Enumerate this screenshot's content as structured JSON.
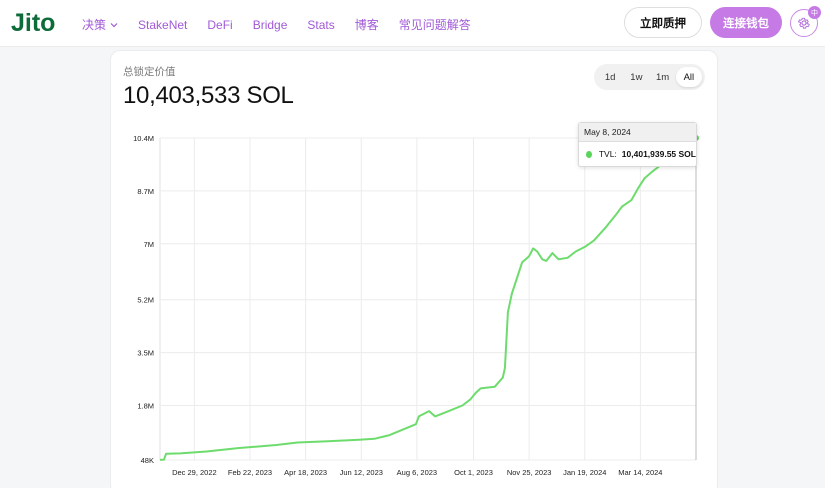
{
  "header": {
    "logo_text": "Jito",
    "nav": [
      {
        "label": "决策",
        "has_dropdown": true
      },
      {
        "label": "StakeNet"
      },
      {
        "label": "DeFi"
      },
      {
        "label": "Bridge"
      },
      {
        "label": "Stats"
      },
      {
        "label": "博客"
      },
      {
        "label": "常见问题解答"
      }
    ],
    "stake_button": "立即质押",
    "connect_button": "连接钱包",
    "language_badge": "中",
    "settings_icon": "gear-icon"
  },
  "colors": {
    "accent": "#c57ae6",
    "nav_text": "#a15ad6",
    "series": "#6ddc6d",
    "logo": "#0e6b3a"
  },
  "summary": {
    "label": "总锁定价值",
    "value": "10,403,533 SOL"
  },
  "range": {
    "options": [
      "1d",
      "1w",
      "1m",
      "All"
    ],
    "selected": "All"
  },
  "tooltip": {
    "date": "May 8, 2024",
    "series_label": "TVL:",
    "value": "10,401,939.55 SOL"
  },
  "chart_data": {
    "type": "line",
    "title": "",
    "xlabel": "",
    "ylabel": "",
    "grid": true,
    "y_ticks": [
      48000,
      1800000,
      3500000,
      5200000,
      7000000,
      8700000,
      10400000
    ],
    "y_tick_labels": [
      "48K",
      "1.8M",
      "3.5M",
      "5.2M",
      "7M",
      "8.7M",
      "10.4M"
    ],
    "ylim": [
      48000,
      10400000
    ],
    "x_ticks": [
      "2022-12-29",
      "2023-02-22",
      "2023-04-18",
      "2023-06-12",
      "2023-08-06",
      "2023-10-01",
      "2023-11-25",
      "2024-01-19",
      "2024-03-14"
    ],
    "x_tick_labels": [
      "Dec 29, 2022",
      "Feb 22, 2023",
      "Apr 18, 2023",
      "Jun 12, 2023",
      "Aug 6, 2023",
      "Oct 1, 2023",
      "Nov 25, 2023",
      "Jan 19, 2024",
      "Mar 14, 2024"
    ],
    "xlim": [
      "2022-11-25",
      "2024-05-08"
    ],
    "series": [
      {
        "points": [
          [
            "2022-11-25",
            50000
          ],
          [
            "2022-11-29",
            60000
          ],
          [
            "2022-12-01",
            250000
          ],
          [
            "2022-12-15",
            260000
          ],
          [
            "2023-01-10",
            320000
          ],
          [
            "2023-02-10",
            430000
          ],
          [
            "2023-02-25",
            470000
          ],
          [
            "2023-03-20",
            530000
          ],
          [
            "2023-04-10",
            610000
          ],
          [
            "2023-05-10",
            650000
          ],
          [
            "2023-06-10",
            700000
          ],
          [
            "2023-06-25",
            730000
          ],
          [
            "2023-07-10",
            850000
          ],
          [
            "2023-07-25",
            1050000
          ],
          [
            "2023-08-05",
            1200000
          ],
          [
            "2023-08-08",
            1450000
          ],
          [
            "2023-08-18",
            1620000
          ],
          [
            "2023-08-24",
            1450000
          ],
          [
            "2023-09-05",
            1600000
          ],
          [
            "2023-09-20",
            1800000
          ],
          [
            "2023-09-28",
            2000000
          ],
          [
            "2023-10-03",
            2200000
          ],
          [
            "2023-10-08",
            2350000
          ],
          [
            "2023-10-22",
            2400000
          ],
          [
            "2023-10-30",
            2700000
          ],
          [
            "2023-11-01",
            3000000
          ],
          [
            "2023-11-04",
            4800000
          ],
          [
            "2023-11-08",
            5400000
          ],
          [
            "2023-11-13",
            5900000
          ],
          [
            "2023-11-18",
            6400000
          ],
          [
            "2023-11-25",
            6600000
          ],
          [
            "2023-11-29",
            6850000
          ],
          [
            "2023-12-03",
            6750000
          ],
          [
            "2023-12-08",
            6500000
          ],
          [
            "2023-12-12",
            6450000
          ],
          [
            "2023-12-18",
            6700000
          ],
          [
            "2023-12-24",
            6500000
          ],
          [
            "2024-01-02",
            6550000
          ],
          [
            "2024-01-10",
            6750000
          ],
          [
            "2024-01-19",
            6900000
          ],
          [
            "2024-01-28",
            7100000
          ],
          [
            "2024-02-08",
            7500000
          ],
          [
            "2024-02-18",
            7900000
          ],
          [
            "2024-02-25",
            8200000
          ],
          [
            "2024-03-05",
            8400000
          ],
          [
            "2024-03-12",
            8800000
          ],
          [
            "2024-03-18",
            9100000
          ],
          [
            "2024-03-25",
            9300000
          ],
          [
            "2024-04-02",
            9500000
          ],
          [
            "2024-04-12",
            9800000
          ],
          [
            "2024-04-20",
            10000000
          ],
          [
            "2024-04-28",
            10200000
          ],
          [
            "2024-05-08",
            10401939.55
          ]
        ]
      }
    ]
  }
}
